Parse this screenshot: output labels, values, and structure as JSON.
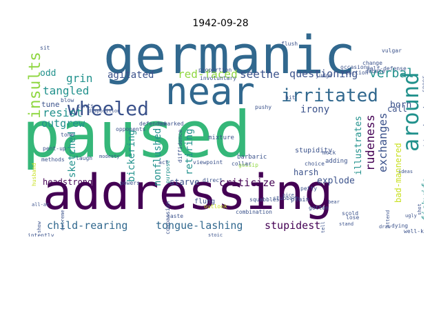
{
  "title": "1942-09-28",
  "colors": {
    "dark_purple": "#440154",
    "indigo": "#3b528b",
    "teal_blue": "#31688e",
    "teal": "#21918c",
    "green": "#35b779",
    "light_green": "#90d743",
    "yellow_green": "#c8e020"
  },
  "words": [
    "paused",
    "germanic",
    "addressing",
    "near",
    "wheeled",
    "irritated",
    "insults",
    "around",
    "verbal",
    "seethe",
    "grin",
    "questioning",
    "red-faced",
    "agitated",
    "odd",
    "tangled",
    "resist",
    "outgrew",
    "born",
    "tune",
    "irony",
    "call",
    "exchanges",
    "rudeness",
    "sketched",
    "nonflushed",
    "retiring",
    "bickering",
    "criticize",
    "headstrong",
    "starve",
    "explode",
    "child-rearing",
    "tongue-lashing",
    "stupidest",
    "fishwife",
    "scatterbrain",
    "illustrates",
    "harsh",
    "bad-mannered",
    "stupidity",
    "barbaric",
    "plain",
    "mixture",
    "combination",
    "flung",
    "stubborn",
    "gotten",
    "squabbles",
    "direct",
    "viewpoint",
    "astonished",
    "compassion",
    "act",
    "purpose",
    "defended",
    "diffidence",
    "remarked",
    "opponents",
    "cents",
    "disposition",
    "tone",
    "choice",
    "adding",
    "mock",
    "husband",
    "petty",
    "pushy",
    "show",
    "gossip",
    "hit",
    "attend",
    "judge",
    "change",
    "debate",
    "occasions",
    "reaction",
    "extreme",
    "self-defense",
    "vulgar",
    "flush",
    "proportion",
    "involuntary",
    "methods",
    "pent-up",
    "all-at",
    "intently",
    "sit",
    "blow",
    "lose",
    "scold",
    "dying",
    "well-known",
    "draw",
    "laugh",
    "taste",
    "outlook",
    "powers",
    "collar",
    "modesty",
    "faults",
    "refer",
    "quarrel",
    "directly",
    "overmodest",
    "followed",
    "desire",
    "shot",
    "bear",
    "ugly",
    "ideas",
    "sneer",
    "tell",
    "stand",
    "stoic",
    "nice"
  ]
}
